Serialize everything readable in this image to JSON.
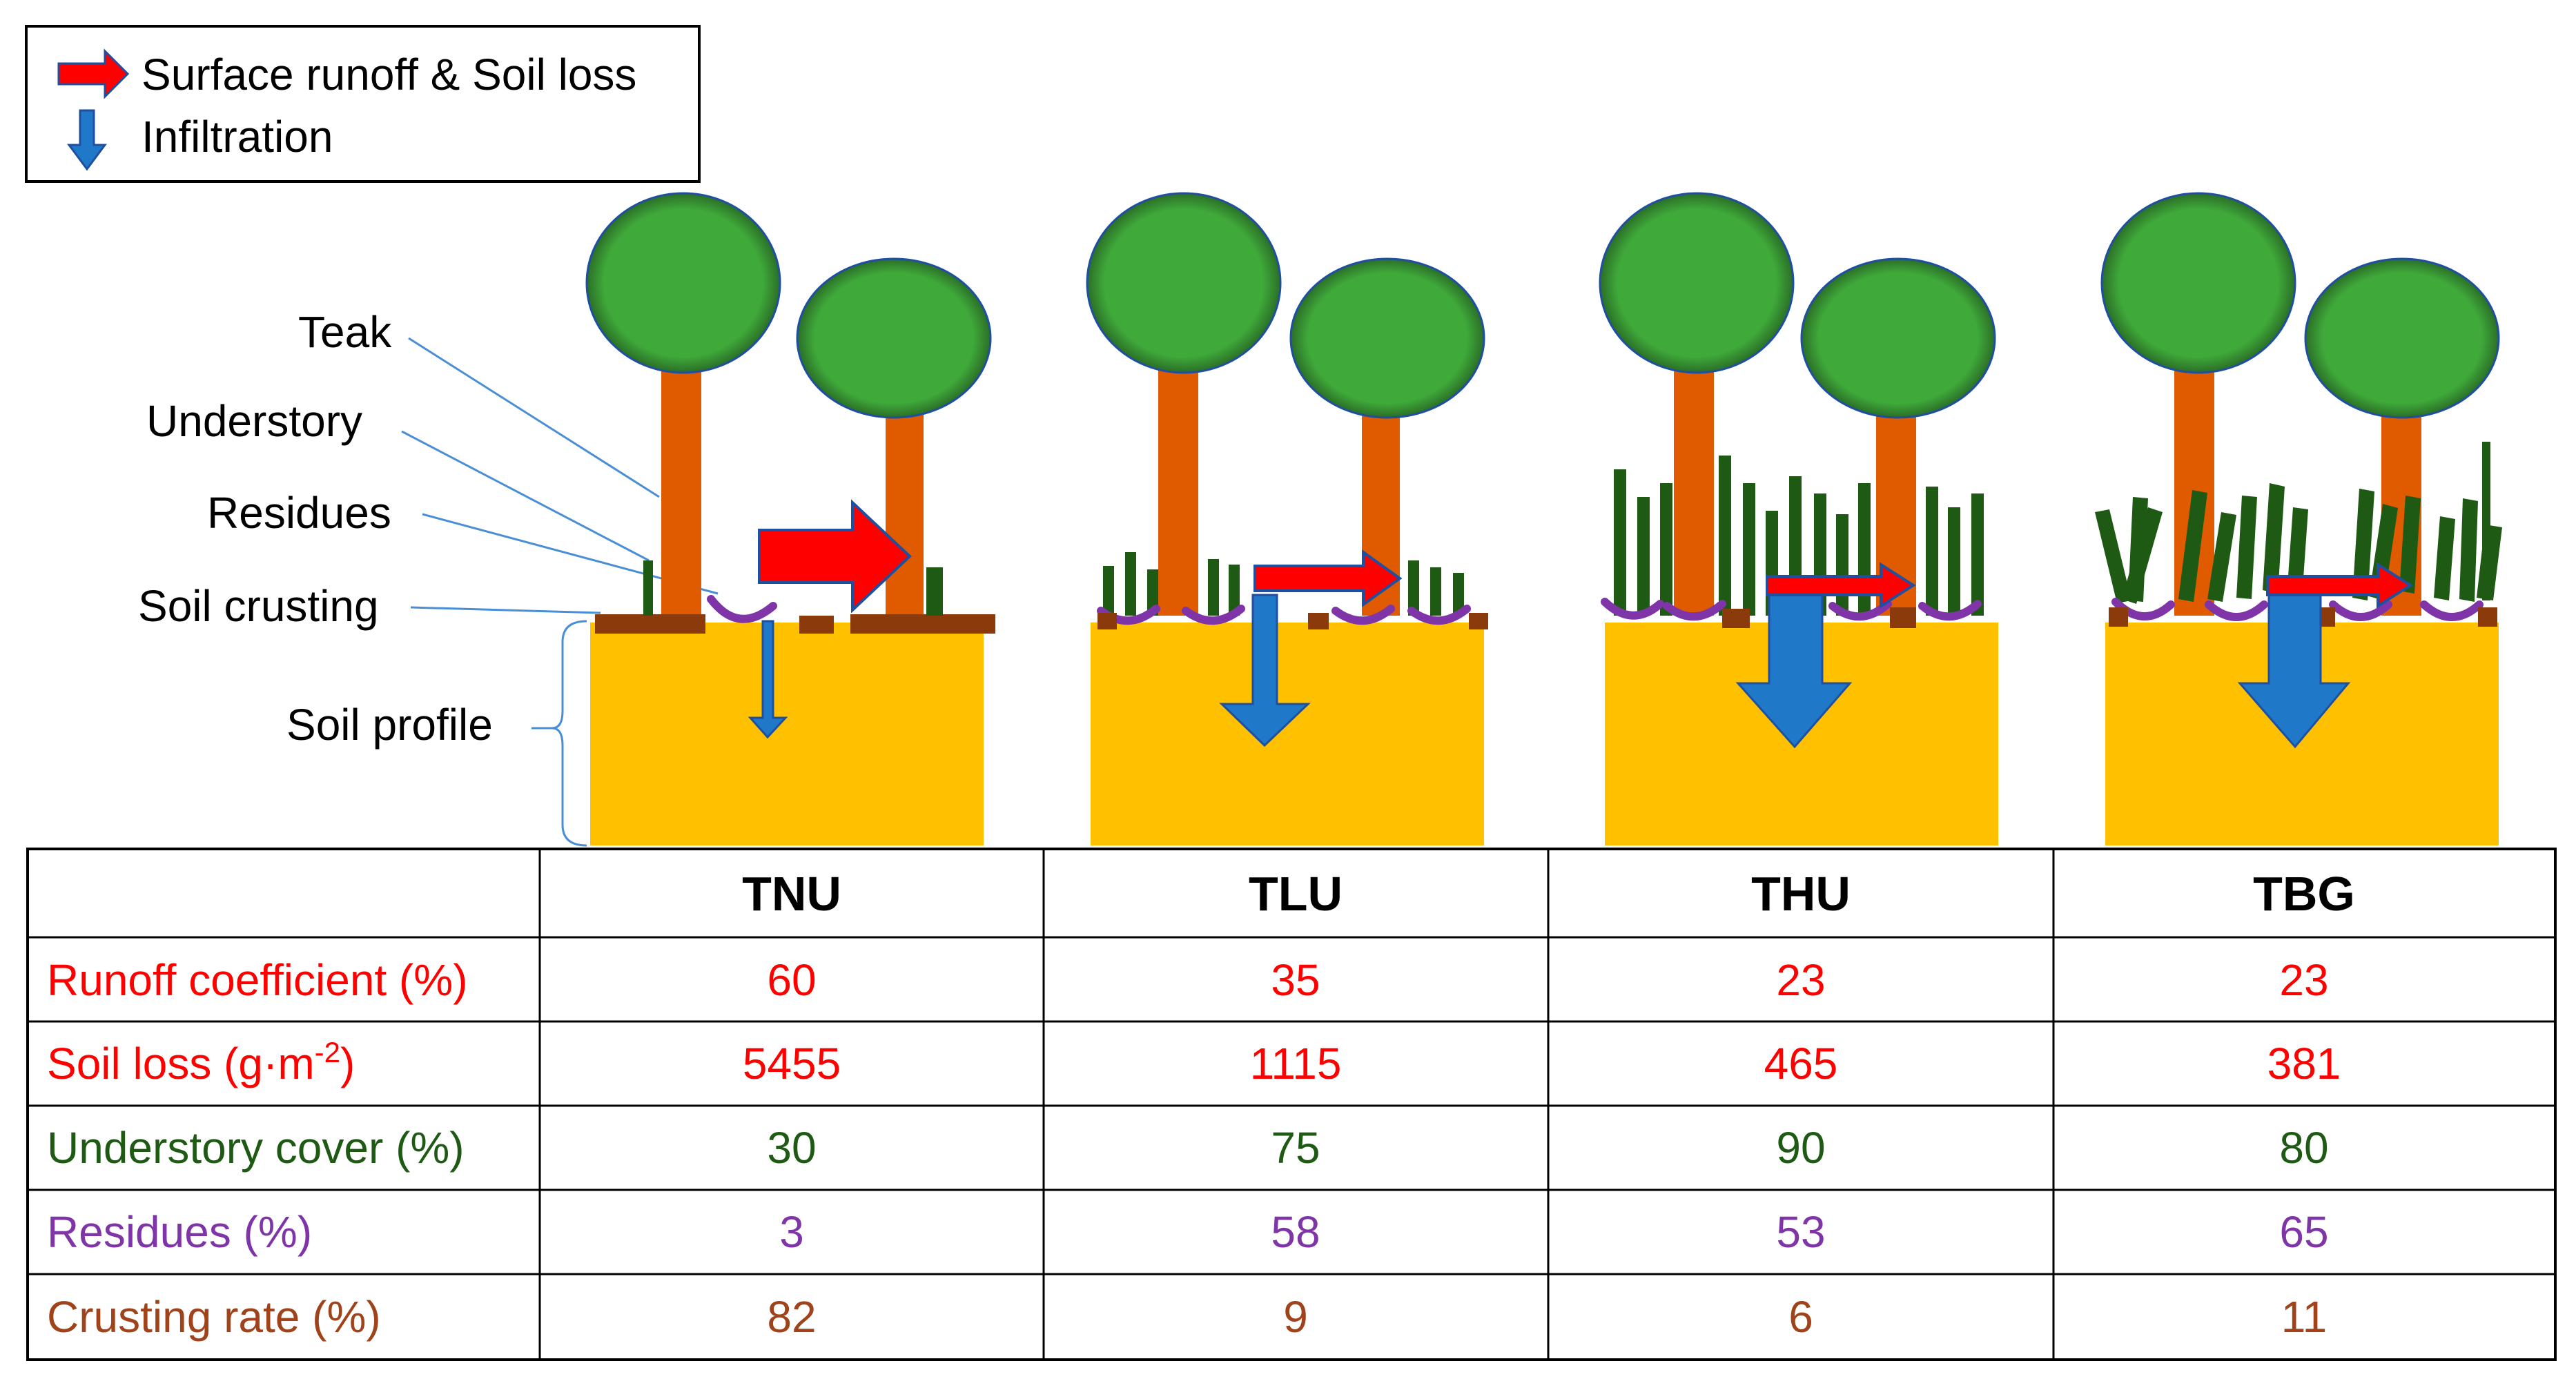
{
  "legend": {
    "runoff_label": "Surface runoff & Soil loss",
    "infiltration_label": "Infiltration"
  },
  "labels": {
    "teak": "Teak",
    "understory": "Understory",
    "residues": "Residues",
    "soil_crusting": "Soil crusting",
    "soil_profile": "Soil profile"
  },
  "colors": {
    "runoff_arrow": "#ff0000",
    "infiltration_arrow": "#1f78c8",
    "canopy": "#3faa3a",
    "trunk": "#e05a00",
    "soil": "#ffc000",
    "understory": "#1e5a14",
    "residue": "#7f35a8",
    "crust": "#8b3a0c",
    "row_runoff": "#ff0000",
    "row_soil_loss": "#ff0000",
    "row_understory": "#1e5a14",
    "row_residues": "#7f35a8",
    "row_crusting": "#a0421a"
  },
  "table": {
    "columns": [
      "TNU",
      "TLU",
      "THU",
      "TBG"
    ],
    "rows": [
      {
        "label": "Runoff coefficient (%)",
        "values": [
          "60",
          "35",
          "23",
          "23"
        ]
      },
      {
        "label_main": "Soil loss (g·m",
        "label_sup": "-2",
        "label_end": ")",
        "values": [
          "5455",
          "1115",
          "465",
          "381"
        ]
      },
      {
        "label": "Understory cover (%)",
        "values": [
          "30",
          "75",
          "90",
          "80"
        ]
      },
      {
        "label": "Residues (%)",
        "values": [
          "3",
          "58",
          "53",
          "65"
        ]
      },
      {
        "label": "Crusting rate (%)",
        "values": [
          "82",
          "9",
          "6",
          "11"
        ]
      }
    ]
  }
}
